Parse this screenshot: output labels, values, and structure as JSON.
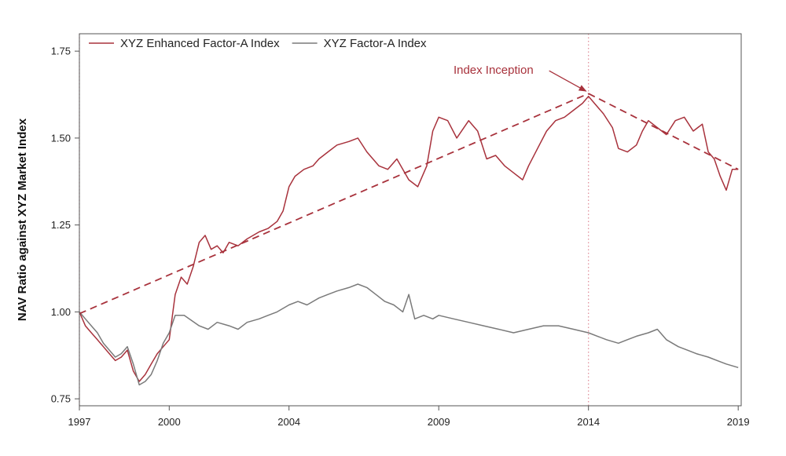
{
  "chart_data": {
    "type": "line",
    "title": "",
    "xlabel": "",
    "ylabel": "NAV Ratio against XYZ Market Index",
    "xlim": [
      1997.0,
      2019.1
    ],
    "ylim": [
      0.73,
      1.8
    ],
    "x_ticks": [
      1997,
      2000,
      2004,
      2009,
      2014,
      2019
    ],
    "x_tick_labels": [
      "1997",
      "2000",
      "2004",
      "2009",
      "2014",
      "2019"
    ],
    "y_ticks": [
      0.75,
      1.0,
      1.25,
      1.5,
      1.75
    ],
    "y_tick_labels": [
      "0.75",
      "1.00",
      "1.25",
      "1.50",
      "1.75"
    ],
    "grid": false,
    "legend_position": "top-left",
    "colors": {
      "enhanced": "#a8323c",
      "factor": "#7a7a7a",
      "marker": "#e08a96"
    },
    "series": [
      {
        "name": "XYZ Enhanced Factor-A Index",
        "color": "#a8323c",
        "x": [
          1997.0,
          1997.2,
          1997.4,
          1997.6,
          1997.8,
          1998.0,
          1998.2,
          1998.4,
          1998.6,
          1998.8,
          1999.0,
          1999.2,
          1999.4,
          1999.6,
          1999.8,
          2000.0,
          2000.2,
          2000.4,
          2000.6,
          2000.8,
          2001.0,
          2001.2,
          2001.4,
          2001.6,
          2001.8,
          2002.0,
          2002.3,
          2002.6,
          2003.0,
          2003.3,
          2003.6,
          2003.8,
          2004.0,
          2004.2,
          2004.5,
          2004.8,
          2005.0,
          2005.3,
          2005.6,
          2006.0,
          2006.3,
          2006.6,
          2007.0,
          2007.3,
          2007.6,
          2008.0,
          2008.3,
          2008.6,
          2008.8,
          2009.0,
          2009.3,
          2009.6,
          2010.0,
          2010.3,
          2010.6,
          2010.9,
          2011.2,
          2011.5,
          2011.8,
          2012.0,
          2012.3,
          2012.6,
          2012.9,
          2013.2,
          2013.5,
          2013.8,
          2014.0,
          2014.2,
          2014.5,
          2014.8,
          2015.0,
          2015.3,
          2015.6,
          2015.8,
          2016.0,
          2016.3,
          2016.6,
          2016.9,
          2017.2,
          2017.5,
          2017.8,
          2018.0,
          2018.2,
          2018.4,
          2018.6,
          2018.8,
          2019.0
        ],
        "values": [
          1.0,
          0.96,
          0.94,
          0.92,
          0.9,
          0.88,
          0.86,
          0.87,
          0.89,
          0.83,
          0.8,
          0.82,
          0.85,
          0.88,
          0.9,
          0.92,
          1.05,
          1.1,
          1.08,
          1.13,
          1.2,
          1.22,
          1.18,
          1.19,
          1.17,
          1.2,
          1.19,
          1.21,
          1.23,
          1.24,
          1.26,
          1.29,
          1.36,
          1.39,
          1.41,
          1.42,
          1.44,
          1.46,
          1.48,
          1.49,
          1.5,
          1.46,
          1.42,
          1.41,
          1.44,
          1.38,
          1.36,
          1.42,
          1.52,
          1.56,
          1.55,
          1.5,
          1.55,
          1.52,
          1.44,
          1.45,
          1.42,
          1.4,
          1.38,
          1.42,
          1.47,
          1.52,
          1.55,
          1.56,
          1.58,
          1.6,
          1.62,
          1.6,
          1.57,
          1.53,
          1.47,
          1.46,
          1.48,
          1.52,
          1.55,
          1.53,
          1.51,
          1.55,
          1.56,
          1.52,
          1.54,
          1.46,
          1.44,
          1.39,
          1.35,
          1.41,
          1.41
        ]
      },
      {
        "name": "XYZ Factor-A Index",
        "color": "#7a7a7a",
        "x": [
          1997.0,
          1997.2,
          1997.4,
          1997.6,
          1997.8,
          1998.0,
          1998.2,
          1998.4,
          1998.6,
          1998.8,
          1999.0,
          1999.2,
          1999.4,
          1999.6,
          1999.8,
          2000.0,
          2000.2,
          2000.5,
          2001.0,
          2001.3,
          2001.6,
          2002.0,
          2002.3,
          2002.6,
          2003.0,
          2003.3,
          2003.6,
          2004.0,
          2004.3,
          2004.6,
          2005.0,
          2005.3,
          2005.6,
          2006.0,
          2006.3,
          2006.6,
          2006.9,
          2007.2,
          2007.5,
          2007.8,
          2008.0,
          2008.2,
          2008.5,
          2008.8,
          2009.0,
          2009.5,
          2010.0,
          2010.5,
          2011.0,
          2011.5,
          2012.0,
          2012.5,
          2013.0,
          2013.5,
          2014.0,
          2014.3,
          2014.6,
          2015.0,
          2015.3,
          2015.6,
          2016.0,
          2016.3,
          2016.6,
          2017.0,
          2017.3,
          2017.6,
          2018.0,
          2018.3,
          2018.6,
          2019.0
        ],
        "values": [
          1.0,
          0.98,
          0.96,
          0.94,
          0.91,
          0.89,
          0.87,
          0.88,
          0.9,
          0.85,
          0.79,
          0.8,
          0.82,
          0.86,
          0.91,
          0.94,
          0.99,
          0.99,
          0.96,
          0.95,
          0.97,
          0.96,
          0.95,
          0.97,
          0.98,
          0.99,
          1.0,
          1.02,
          1.03,
          1.02,
          1.04,
          1.05,
          1.06,
          1.07,
          1.08,
          1.07,
          1.05,
          1.03,
          1.02,
          1.0,
          1.05,
          0.98,
          0.99,
          0.98,
          0.99,
          0.98,
          0.97,
          0.96,
          0.95,
          0.94,
          0.95,
          0.96,
          0.96,
          0.95,
          0.94,
          0.93,
          0.92,
          0.91,
          0.92,
          0.93,
          0.94,
          0.95,
          0.92,
          0.9,
          0.89,
          0.88,
          0.87,
          0.86,
          0.85,
          0.84
        ]
      }
    ],
    "trendlines": [
      {
        "name": "",
        "x": [
          1997.0,
          2014.0
        ],
        "values": [
          0.995,
          1.628
        ]
      },
      {
        "name": "",
        "x": [
          2014.0,
          2019.0
        ],
        "values": [
          1.628,
          1.41
        ]
      }
    ],
    "reference_lines": [
      {
        "axis": "x",
        "value": 1997.0
      },
      {
        "axis": "x",
        "value": 2014.0
      }
    ],
    "annotations": [
      {
        "text": "Index Inception",
        "x": 2014.0,
        "y": 1.628
      }
    ]
  }
}
